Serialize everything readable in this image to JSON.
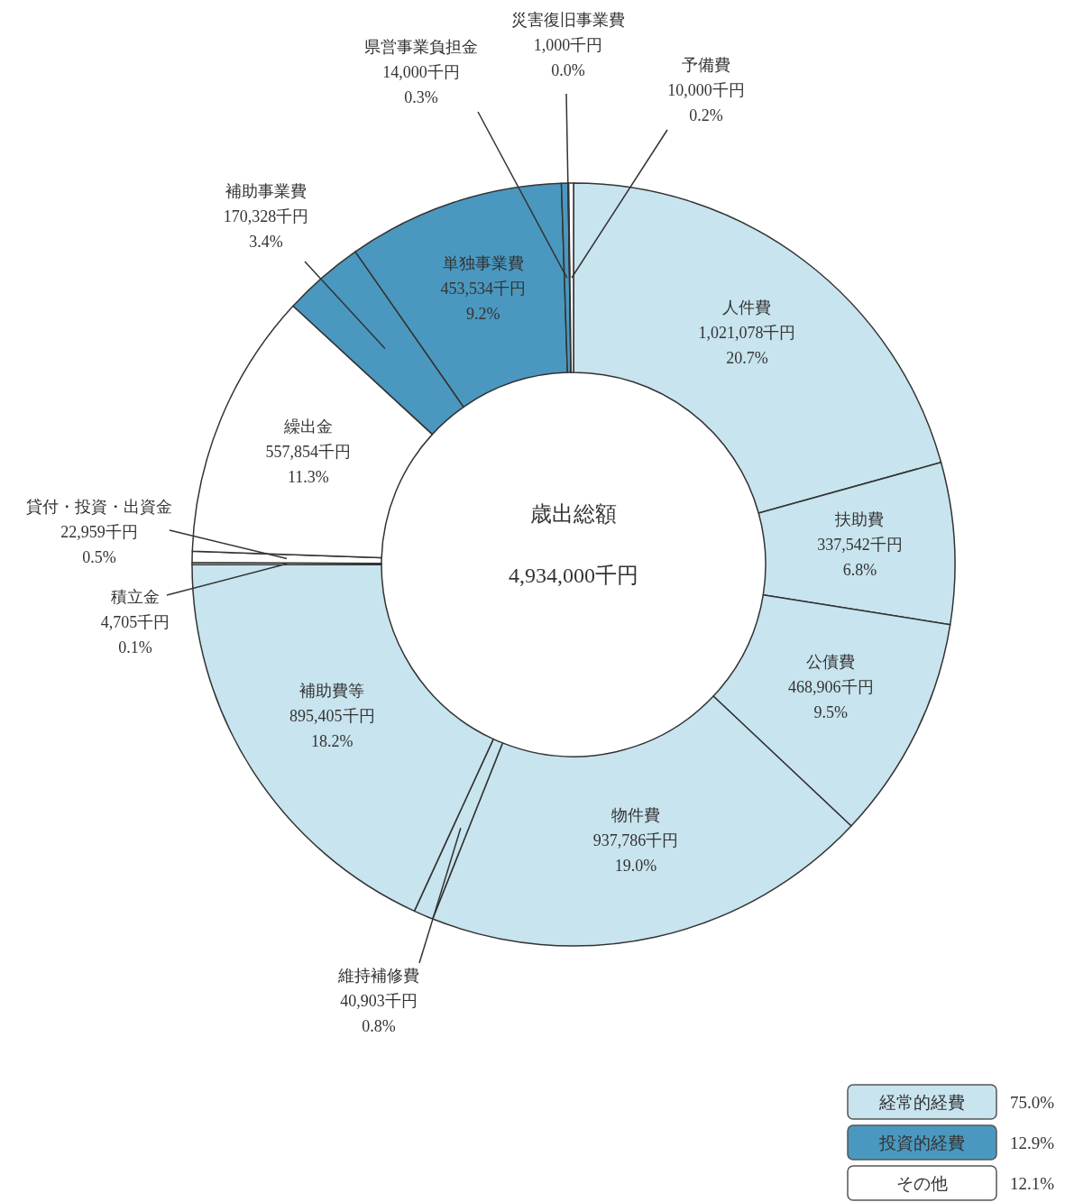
{
  "chart_data": {
    "type": "donut",
    "title": "歳出総額",
    "subtitle": "4,934,000千円",
    "categories": [
      "人件費",
      "扶助費",
      "公債費",
      "物件費",
      "維持補修費",
      "補助費等",
      "積立金",
      "貸付・投資・出資金",
      "繰出金",
      "補助事業費",
      "単独事業費",
      "県営事業負担金",
      "災害復旧事業費",
      "予備費"
    ],
    "values": [
      1021078,
      337542,
      468906,
      937786,
      40903,
      895405,
      4705,
      22959,
      557854,
      170328,
      453534,
      14000,
      1000,
      10000
    ],
    "value_labels": [
      "1,021,078千円\n20.7%",
      "337,542千円\n6.8%",
      "468,906千円\n9.5%",
      "937,786千円\n19.0%",
      "40,903千円\n0.8%",
      "895,405千円\n18.2%",
      "4,705千円\n0.1%",
      "22,959千円\n0.5%",
      "557,854千円\n11.3%",
      "170,328千円\n3.4%",
      "453,534千円\n9.2%",
      "14,000千円\n0.3%",
      "1,000千円\n0.0%",
      "10,000千円\n0.2%"
    ],
    "colors": [
      "#c8e4ee",
      "#c8e4ee",
      "#c8e4ee",
      "#c8e4ee",
      "#c8e4ee",
      "#c8e4ee",
      "#ffffff",
      "#ffffff",
      "#ffffff",
      "#4a98bf",
      "#4a98bf",
      "#4a98bf",
      "#4a98bf",
      "#ffffff"
    ],
    "annotations": [
      "経常的経費 75.0%",
      "投資的経費 12.9%",
      "その他 12.1%"
    ]
  }
}
